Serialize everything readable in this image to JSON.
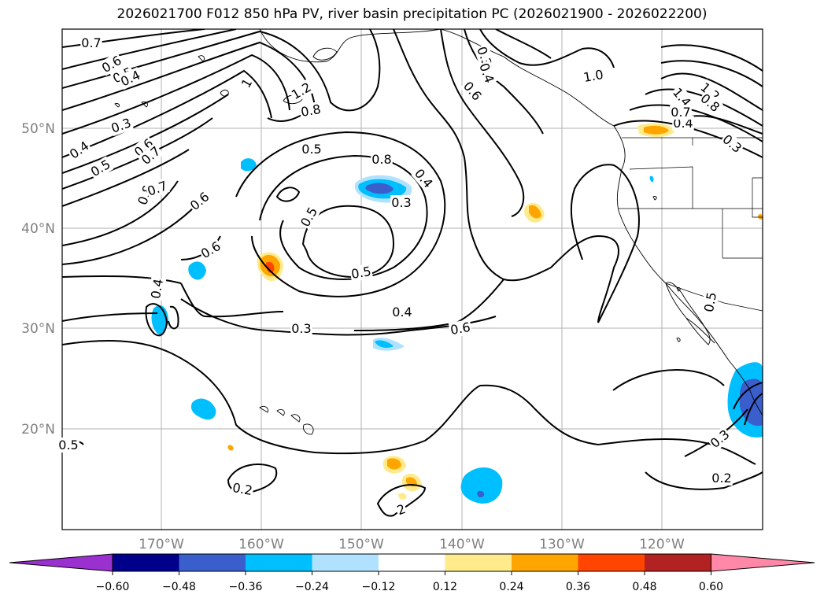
{
  "title": "2026021700 F012 850 hPa PV, river basin precipitation PC (2026021900 - 2026022200)",
  "lat_labels": [
    "50°N",
    "40°N",
    "30°N",
    "20°N"
  ],
  "lon_labels": [
    "170°W",
    "160°W",
    "150°W",
    "140°W",
    "130°W",
    "120°W"
  ],
  "contour_labels": [
    "0.7",
    "0.6",
    "0.5",
    "0.4",
    "0.3",
    "1",
    "1.2",
    "0.8",
    "0.5",
    "0.4",
    "0.5",
    "0.6",
    "0.7",
    "0.8",
    "0.6",
    "0.7",
    "0.6",
    "0.8",
    "0.4",
    "0.3",
    "0.5",
    "0.5",
    "0.4",
    "0.3",
    "0.6",
    "0.3",
    "0.6",
    "0.4",
    "1.0",
    "1.4",
    "1.2",
    "0.8",
    "0.4",
    "0.7",
    "0.3",
    "0.5",
    "0.4",
    "0.3",
    "0.2",
    "0.2",
    "2",
    "0.5"
  ],
  "colorbar": {
    "colors": [
      "#9b30d0",
      "#00008b",
      "#3a5fcd",
      "#00bfff",
      "#b0e2ff",
      "#ffffff",
      "#ffeb8c",
      "#ffa500",
      "#ff4500",
      "#b22222",
      "#ff88a8"
    ],
    "tick_labels": [
      "−0.60",
      "−0.48",
      "−0.36",
      "−0.24",
      "−0.12",
      "0.12",
      "0.24",
      "0.36",
      "0.48",
      "0.60"
    ]
  }
}
